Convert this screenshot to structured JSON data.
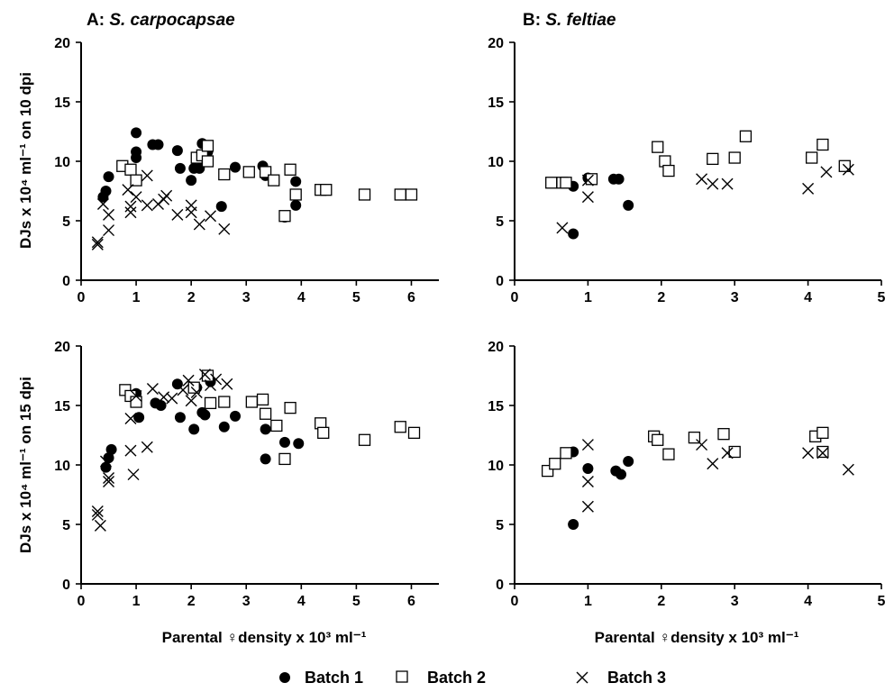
{
  "legend": {
    "batch1": "Batch 1",
    "batch2": "Batch 2",
    "batch3": "Batch 3"
  },
  "row_labels": {
    "top": "DJs x 10⁴ ml⁻¹ on 10 dpi",
    "bottom": "DJs x 10⁴ ml⁻¹ on 15 dpi"
  },
  "x_label": "Parental ♀density x 10³ ml⁻¹",
  "panel_titles": {
    "A_prefix": "A: ",
    "A_species": "S. carpocapsae",
    "B_prefix": "B: ",
    "B_species": "S. feltiae"
  },
  "chart_data": [
    {
      "id": "A_10dpi",
      "type": "scatter",
      "xlim": [
        0,
        6.5
      ],
      "ylim": [
        0,
        20
      ],
      "xticks": [
        0,
        1,
        2,
        3,
        4,
        5,
        6
      ],
      "yticks": [
        0,
        5,
        10,
        15,
        20
      ],
      "series": [
        {
          "name": "Batch 1",
          "marker": "circle",
          "points": [
            [
              0.4,
              7.0
            ],
            [
              0.45,
              7.5
            ],
            [
              0.5,
              8.7
            ],
            [
              1.0,
              12.4
            ],
            [
              1.0,
              10.8
            ],
            [
              1.0,
              10.3
            ],
            [
              1.3,
              11.4
            ],
            [
              1.4,
              11.4
            ],
            [
              1.75,
              10.9
            ],
            [
              1.8,
              9.4
            ],
            [
              2.0,
              8.4
            ],
            [
              2.05,
              9.4
            ],
            [
              2.15,
              9.4
            ],
            [
              2.2,
              11.5
            ],
            [
              2.3,
              10.8
            ],
            [
              2.55,
              6.2
            ],
            [
              2.8,
              9.5
            ],
            [
              3.3,
              9.6
            ],
            [
              3.35,
              8.8
            ],
            [
              3.7,
              5.3
            ],
            [
              3.9,
              8.3
            ],
            [
              3.9,
              6.3
            ]
          ]
        },
        {
          "name": "Batch 2",
          "marker": "square",
          "points": [
            [
              0.75,
              9.6
            ],
            [
              0.9,
              9.3
            ],
            [
              1.0,
              8.4
            ],
            [
              2.1,
              10.3
            ],
            [
              2.2,
              10.5
            ],
            [
              2.3,
              11.3
            ],
            [
              2.3,
              10.0
            ],
            [
              2.6,
              8.9
            ],
            [
              3.05,
              9.1
            ],
            [
              3.35,
              9.1
            ],
            [
              3.5,
              8.4
            ],
            [
              3.7,
              5.4
            ],
            [
              3.8,
              9.3
            ],
            [
              3.9,
              7.2
            ],
            [
              4.35,
              7.6
            ],
            [
              4.45,
              7.6
            ],
            [
              5.15,
              7.2
            ],
            [
              5.8,
              7.2
            ],
            [
              6.0,
              7.2
            ]
          ]
        },
        {
          "name": "Batch 3",
          "marker": "cross",
          "points": [
            [
              0.3,
              3.2
            ],
            [
              0.3,
              3.0
            ],
            [
              0.4,
              6.4
            ],
            [
              0.5,
              4.2
            ],
            [
              0.5,
              5.5
            ],
            [
              0.85,
              7.6
            ],
            [
              0.9,
              6.2
            ],
            [
              0.9,
              5.7
            ],
            [
              1.0,
              7.0
            ],
            [
              1.2,
              8.8
            ],
            [
              1.2,
              6.3
            ],
            [
              1.4,
              6.4
            ],
            [
              1.5,
              6.8
            ],
            [
              1.55,
              7.1
            ],
            [
              1.75,
              5.5
            ],
            [
              2.0,
              6.3
            ],
            [
              2.0,
              5.7
            ],
            [
              2.15,
              4.7
            ],
            [
              2.35,
              5.4
            ],
            [
              2.6,
              4.3
            ]
          ]
        }
      ]
    },
    {
      "id": "B_10dpi",
      "type": "scatter",
      "xlim": [
        0,
        5
      ],
      "ylim": [
        0,
        20
      ],
      "xticks": [
        0,
        1,
        2,
        3,
        4,
        5
      ],
      "yticks": [
        0,
        5,
        10,
        15,
        20
      ],
      "series": [
        {
          "name": "Batch 1",
          "marker": "circle",
          "points": [
            [
              0.8,
              7.9
            ],
            [
              0.8,
              3.9
            ],
            [
              1.0,
              8.6
            ],
            [
              1.35,
              8.5
            ],
            [
              1.42,
              8.5
            ],
            [
              1.55,
              6.3
            ]
          ]
        },
        {
          "name": "Batch 2",
          "marker": "square",
          "points": [
            [
              0.5,
              8.2
            ],
            [
              0.65,
              8.2
            ],
            [
              0.7,
              8.2
            ],
            [
              1.05,
              8.5
            ],
            [
              1.95,
              11.2
            ],
            [
              2.05,
              10.0
            ],
            [
              2.1,
              9.2
            ],
            [
              2.7,
              10.2
            ],
            [
              3.0,
              10.3
            ],
            [
              3.15,
              12.1
            ],
            [
              4.05,
              10.3
            ],
            [
              4.2,
              11.4
            ],
            [
              4.5,
              9.6
            ]
          ]
        },
        {
          "name": "Batch 3",
          "marker": "cross",
          "points": [
            [
              0.65,
              4.4
            ],
            [
              1.0,
              7.0
            ],
            [
              1.0,
              8.4
            ],
            [
              2.55,
              8.5
            ],
            [
              2.7,
              8.1
            ],
            [
              2.9,
              8.1
            ],
            [
              4.0,
              7.7
            ],
            [
              4.25,
              9.1
            ],
            [
              4.55,
              9.3
            ]
          ]
        }
      ]
    },
    {
      "id": "A_15dpi",
      "type": "scatter",
      "xlim": [
        0,
        6.5
      ],
      "ylim": [
        0,
        20
      ],
      "xticks": [
        0,
        1,
        2,
        3,
        4,
        5,
        6
      ],
      "yticks": [
        0,
        5,
        10,
        15,
        20
      ],
      "series": [
        {
          "name": "Batch 1",
          "marker": "circle",
          "points": [
            [
              0.45,
              9.8
            ],
            [
              0.5,
              10.6
            ],
            [
              0.55,
              11.3
            ],
            [
              1.0,
              16.0
            ],
            [
              1.0,
              15.5
            ],
            [
              1.05,
              14.0
            ],
            [
              1.35,
              15.2
            ],
            [
              1.45,
              15.0
            ],
            [
              1.75,
              16.8
            ],
            [
              1.8,
              14.0
            ],
            [
              2.05,
              13.0
            ],
            [
              2.1,
              16.5
            ],
            [
              2.2,
              14.4
            ],
            [
              2.25,
              14.2
            ],
            [
              2.35,
              17.0
            ],
            [
              2.6,
              13.2
            ],
            [
              2.8,
              14.1
            ],
            [
              3.35,
              13.0
            ],
            [
              3.35,
              10.5
            ],
            [
              3.7,
              11.9
            ],
            [
              3.95,
              11.8
            ]
          ]
        },
        {
          "name": "Batch 2",
          "marker": "square",
          "points": [
            [
              0.8,
              16.3
            ],
            [
              0.9,
              15.8
            ],
            [
              1.0,
              15.3
            ],
            [
              2.05,
              16.5
            ],
            [
              2.3,
              17.5
            ],
            [
              2.35,
              15.2
            ],
            [
              2.6,
              15.3
            ],
            [
              3.1,
              15.3
            ],
            [
              3.3,
              15.5
            ],
            [
              3.35,
              14.3
            ],
            [
              3.55,
              13.3
            ],
            [
              3.7,
              10.5
            ],
            [
              3.8,
              14.8
            ],
            [
              4.35,
              13.5
            ],
            [
              4.4,
              12.7
            ],
            [
              5.15,
              12.1
            ],
            [
              5.8,
              13.2
            ],
            [
              6.05,
              12.7
            ]
          ]
        },
        {
          "name": "Batch 3",
          "marker": "cross",
          "points": [
            [
              0.3,
              6.1
            ],
            [
              0.3,
              5.8
            ],
            [
              0.35,
              4.9
            ],
            [
              0.45,
              10.3
            ],
            [
              0.5,
              8.6
            ],
            [
              0.5,
              8.9
            ],
            [
              0.9,
              13.9
            ],
            [
              0.9,
              11.2
            ],
            [
              0.95,
              9.2
            ],
            [
              1.0,
              15.8
            ],
            [
              1.2,
              11.5
            ],
            [
              1.3,
              16.4
            ],
            [
              1.5,
              15.7
            ],
            [
              1.65,
              15.6
            ],
            [
              1.85,
              16.3
            ],
            [
              1.95,
              17.1
            ],
            [
              2.0,
              15.4
            ],
            [
              2.1,
              16.1
            ],
            [
              2.25,
              17.6
            ],
            [
              2.35,
              16.7
            ],
            [
              2.45,
              17.2
            ],
            [
              2.65,
              16.8
            ]
          ]
        }
      ]
    },
    {
      "id": "B_15dpi",
      "type": "scatter",
      "xlim": [
        0,
        5
      ],
      "ylim": [
        0,
        20
      ],
      "xticks": [
        0,
        1,
        2,
        3,
        4,
        5
      ],
      "yticks": [
        0,
        5,
        10,
        15,
        20
      ],
      "series": [
        {
          "name": "Batch 1",
          "marker": "circle",
          "points": [
            [
              0.8,
              11.1
            ],
            [
              0.8,
              5.0
            ],
            [
              1.0,
              9.7
            ],
            [
              1.38,
              9.5
            ],
            [
              1.45,
              9.2
            ],
            [
              1.55,
              10.3
            ]
          ]
        },
        {
          "name": "Batch 2",
          "marker": "square",
          "points": [
            [
              0.45,
              9.5
            ],
            [
              0.55,
              10.1
            ],
            [
              0.7,
              11.0
            ],
            [
              1.9,
              12.4
            ],
            [
              1.95,
              12.1
            ],
            [
              2.1,
              10.9
            ],
            [
              2.45,
              12.3
            ],
            [
              2.85,
              12.6
            ],
            [
              3.0,
              11.1
            ],
            [
              4.1,
              12.4
            ],
            [
              4.2,
              12.7
            ],
            [
              4.2,
              11.1
            ]
          ]
        },
        {
          "name": "Batch 3",
          "marker": "cross",
          "points": [
            [
              1.0,
              11.7
            ],
            [
              1.0,
              8.6
            ],
            [
              1.0,
              6.5
            ],
            [
              2.55,
              11.7
            ],
            [
              2.7,
              10.1
            ],
            [
              2.9,
              11.0
            ],
            [
              4.0,
              11.0
            ],
            [
              4.2,
              11.0
            ],
            [
              4.55,
              9.6
            ]
          ]
        }
      ]
    }
  ]
}
